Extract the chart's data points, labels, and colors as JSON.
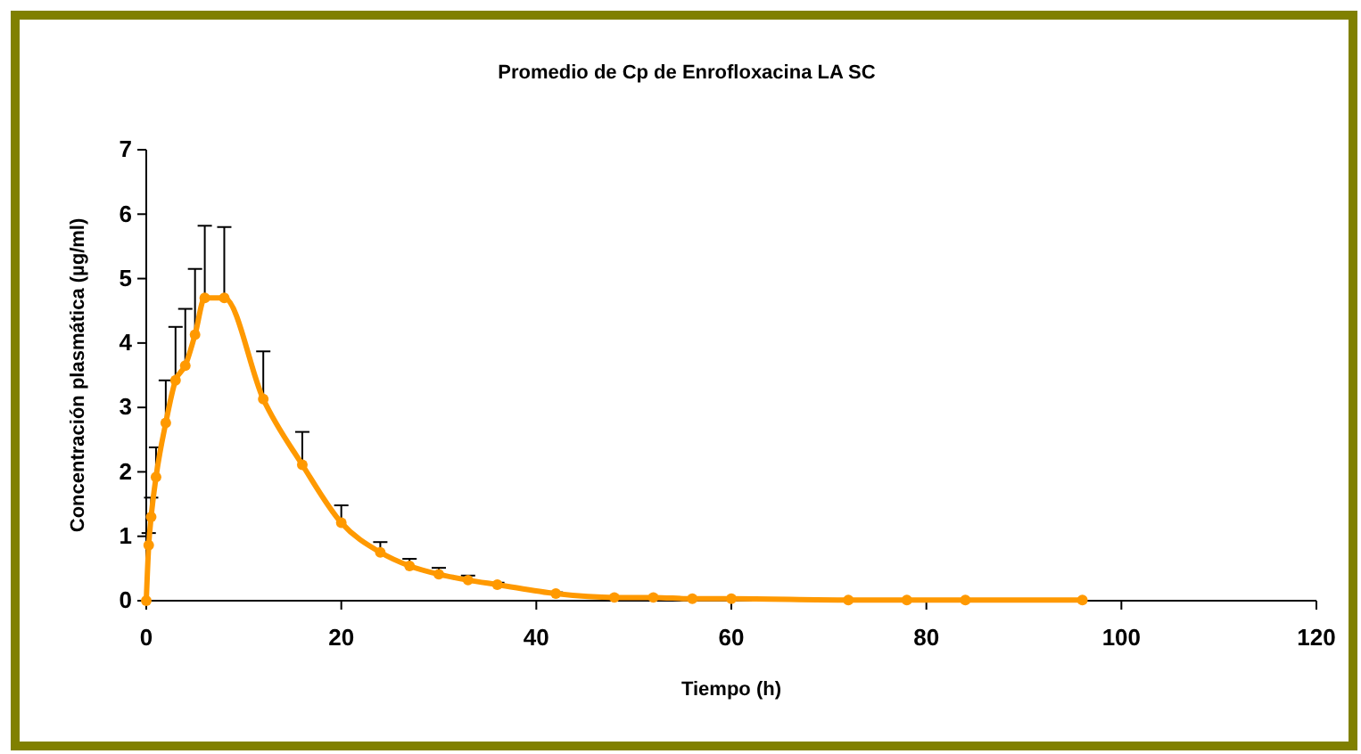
{
  "chart_data": {
    "type": "line",
    "title": "Promedio de Cp de Enrofloxacina LA  SC",
    "xlabel": "Tiempo (h)",
    "ylabel": "Concentración plasmática (µg/ml)",
    "x": [
      0,
      0.25,
      0.5,
      1,
      2,
      3,
      4,
      5,
      6,
      8,
      12,
      16,
      20,
      24,
      27,
      30,
      33,
      36,
      42,
      48,
      52,
      56,
      60,
      72,
      78,
      84,
      96
    ],
    "series": [
      {
        "color": "#ff9900",
        "values": [
          0,
          0.86,
          1.3,
          1.92,
          2.76,
          3.42,
          3.65,
          4.13,
          4.7,
          4.7,
          3.13,
          2.11,
          1.21,
          0.75,
          0.54,
          0.41,
          0.32,
          0.25,
          0.11,
          0.05,
          0.05,
          0.03,
          0.03,
          0.01,
          0.01,
          0.01,
          0.01
        ],
        "errors": [
          null,
          [
            0.86,
            1.05
          ],
          [
            1.3,
            1.6
          ],
          [
            1.92,
            2.38
          ],
          [
            2.76,
            3.42
          ],
          [
            3.42,
            4.25
          ],
          [
            3.65,
            4.53
          ],
          [
            4.13,
            5.15
          ],
          [
            4.7,
            5.82
          ],
          [
            4.7,
            5.8
          ],
          [
            3.13,
            3.87
          ],
          [
            2.11,
            2.62
          ],
          [
            1.21,
            1.48
          ],
          [
            0.75,
            0.91
          ],
          [
            0.54,
            0.65
          ],
          [
            0.41,
            0.51
          ],
          [
            0.32,
            0.39
          ],
          [
            0.25,
            0.28
          ],
          [
            0.11,
            0.13
          ],
          null,
          null,
          null,
          null,
          null,
          null,
          null,
          null
        ]
      }
    ],
    "xlim": [
      0,
      120
    ],
    "xticks": [
      0,
      20,
      40,
      60,
      80,
      100,
      120
    ],
    "ylim": [
      0,
      7
    ],
    "yticks": [
      0,
      1,
      2,
      3,
      4,
      5,
      6,
      7
    ],
    "grid": false,
    "marker": "circle",
    "line_style": "solid"
  }
}
